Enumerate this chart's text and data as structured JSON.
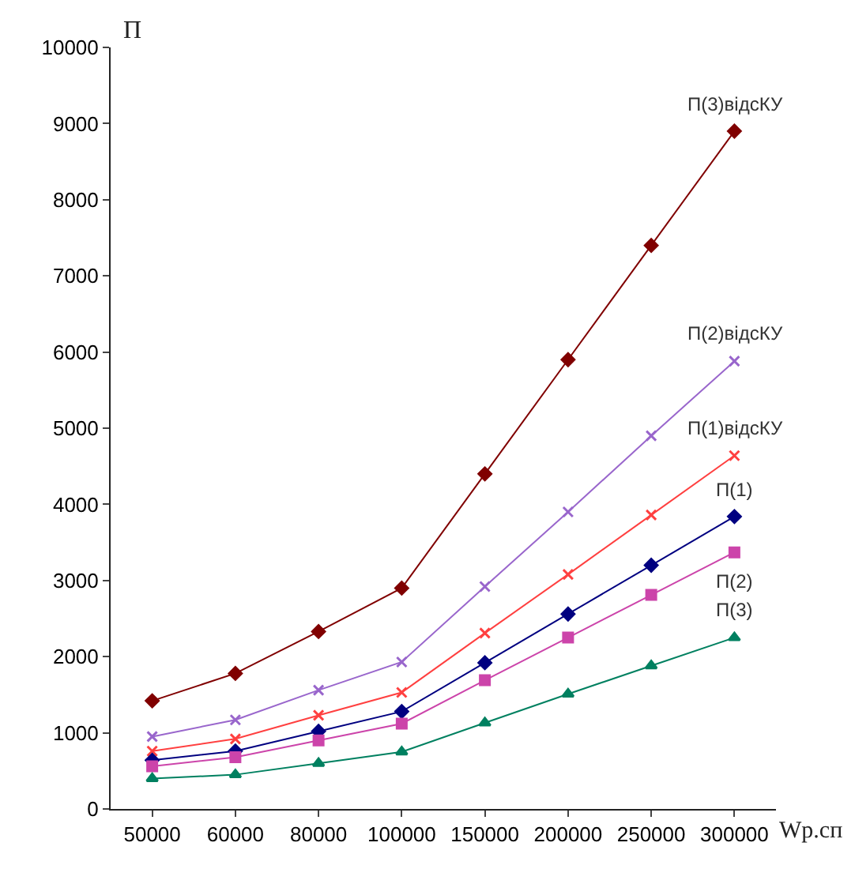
{
  "chart_data": {
    "type": "line",
    "xlabel": "Wp.сп",
    "ylabel": "П",
    "categories": [
      "50000",
      "60000",
      "80000",
      "100000",
      "150000",
      "200000",
      "250000",
      "300000"
    ],
    "series": [
      {
        "name": "П(3)відсКУ",
        "color": "#800000",
        "marker": "diamond",
        "values": [
          1420,
          1780,
          2330,
          2900,
          4400,
          5900,
          7400,
          8900
        ]
      },
      {
        "name": "П(2)відсКУ",
        "color": "#9966cc",
        "marker": "cross",
        "values": [
          950,
          1170,
          1560,
          1930,
          2920,
          3900,
          4900,
          5880
        ]
      },
      {
        "name": "П(1)відсКУ",
        "color": "#ff4040",
        "marker": "cross",
        "values": [
          760,
          920,
          1230,
          1530,
          2310,
          3080,
          3860,
          4640
        ]
      },
      {
        "name": "П(1)",
        "color": "#000080",
        "marker": "diamond",
        "values": [
          640,
          760,
          1020,
          1280,
          1920,
          2560,
          3200,
          3840
        ]
      },
      {
        "name": "П(2)",
        "color": "#cc44aa",
        "marker": "square",
        "values": [
          560,
          680,
          900,
          1120,
          1690,
          2250,
          2810,
          3370
        ]
      },
      {
        "name": "П(3)",
        "color": "#008060",
        "marker": "triangle",
        "values": [
          400,
          450,
          600,
          750,
          1130,
          1510,
          1880,
          2250
        ]
      }
    ],
    "ylim": [
      0,
      10000
    ],
    "yticks": [
      0,
      1000,
      2000,
      3000,
      4000,
      5000,
      6000,
      7000,
      8000,
      9000,
      10000
    ],
    "legend": false
  }
}
